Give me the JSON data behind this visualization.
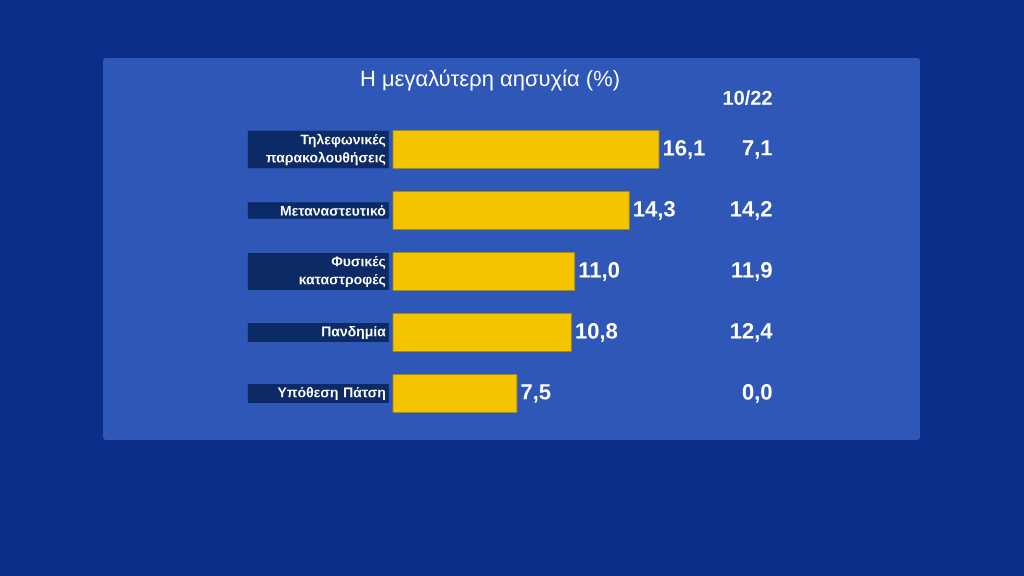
{
  "chart_data": {
    "type": "bar",
    "orientation": "horizontal",
    "title": "Η μεγαλύτερη αησυχία (%)",
    "categories": [
      "Τηλεφωνικές παρακολουθήσεις",
      "Μεταναστευτικό",
      "Φυσικές καταστροφές",
      "Πανδημία",
      "Υπόθεση Πάτση"
    ],
    "values": [
      16.1,
      14.3,
      11.0,
      10.8,
      7.5
    ],
    "value_labels": [
      "16,1",
      "14,3",
      "11,0",
      "10,8",
      "7,5"
    ],
    "color": "#f5c400",
    "annotations": [
      "10/22",
      "7,1",
      "14,2",
      "11,9",
      "12,4",
      "0,0"
    ]
  }
}
